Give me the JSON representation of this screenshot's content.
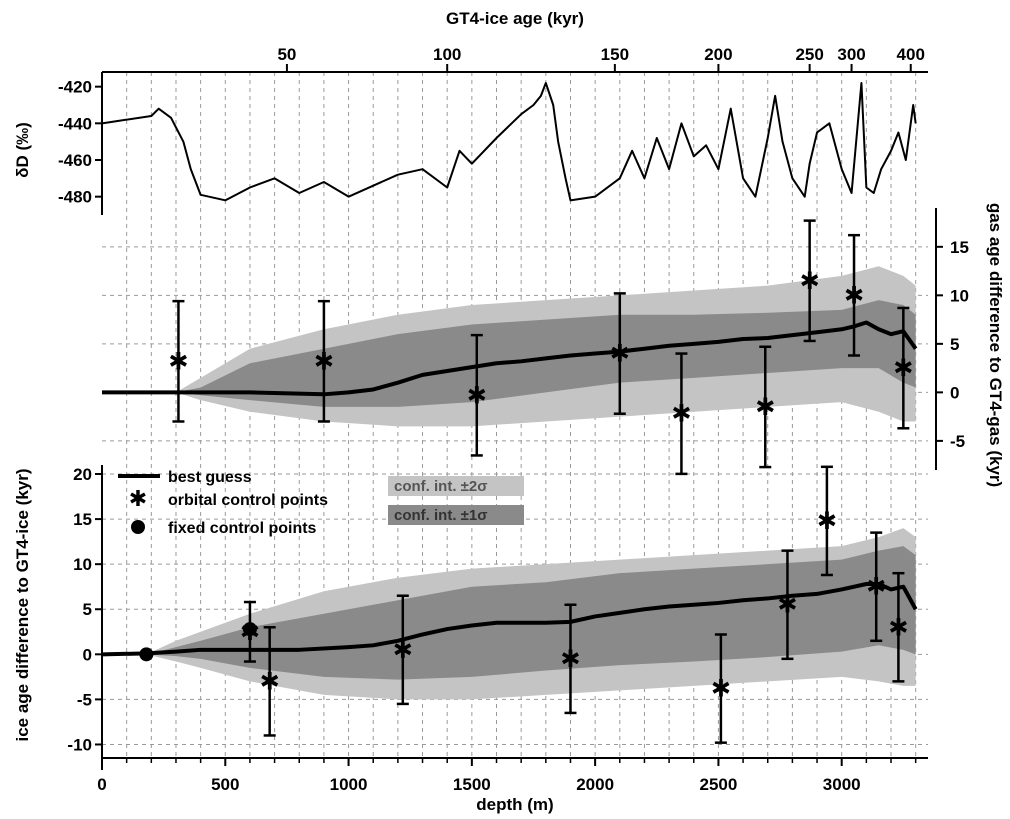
{
  "colors": {
    "curve": "#000000",
    "band_2sigma": "#c4c4c4",
    "band_1sigma": "#8a8a8a",
    "grid": "#9a9a9a",
    "markers": "#000000"
  },
  "axes": {
    "top_title": "GT4-ice age (kyr)",
    "bottom_title": "depth (m)",
    "left_top_title": "δD (‰)",
    "left_bottom_title": "ice age difference to GT4-ice (kyr)",
    "right_title": "gas age difference to GT4-gas (kyr)"
  },
  "legend": {
    "best_guess": "best guess",
    "orbital": "orbital control points",
    "fixed": "fixed control points",
    "conf_2sigma": "conf. int. ±2σ",
    "conf_1sigma": "conf. int. ±1σ"
  },
  "chart_data": [
    {
      "type": "line",
      "panel": "top",
      "ylabel": "δD (‰)",
      "xlabel": "depth (m)",
      "top_axis": {
        "label": "GT4-ice age (kyr)",
        "ticks": [
          {
            "label": "50",
            "depth": 750
          },
          {
            "label": "100",
            "depth": 1400
          },
          {
            "label": "150",
            "depth": 2080
          },
          {
            "label": "200",
            "depth": 2500
          },
          {
            "label": "250",
            "depth": 2870
          },
          {
            "label": "300",
            "depth": 3040
          },
          {
            "label": "400",
            "depth": 3280
          }
        ]
      },
      "ylim": [
        -490,
        -412
      ],
      "yticks": [
        -420,
        -440,
        -460,
        -480
      ],
      "series": [
        {
          "x": [
            0,
            100,
            200,
            230,
            280,
            330,
            360,
            400,
            500,
            600,
            700,
            800,
            900,
            1000,
            1100,
            1200,
            1300,
            1400,
            1450,
            1500,
            1600,
            1700,
            1750,
            1780,
            1800,
            1830,
            1850,
            1880,
            1900,
            2000,
            2100,
            2150,
            2200,
            2250,
            2300,
            2350,
            2400,
            2450,
            2500,
            2550,
            2600,
            2650,
            2700,
            2730,
            2760,
            2800,
            2850,
            2870,
            2900,
            2950,
            3000,
            3040,
            3080,
            3100,
            3130,
            3160,
            3200,
            3230,
            3260,
            3290,
            3300
          ],
          "y": [
            -440,
            -438,
            -436,
            -432,
            -437,
            -450,
            -465,
            -479,
            -482,
            -475,
            -470,
            -478,
            -472,
            -480,
            -474,
            -468,
            -465,
            -475,
            -455,
            -462,
            -448,
            -435,
            -430,
            -425,
            -418,
            -430,
            -450,
            -470,
            -482,
            -480,
            -470,
            -455,
            -470,
            -448,
            -465,
            -440,
            -458,
            -452,
            -465,
            -432,
            -470,
            -480,
            -448,
            -425,
            -450,
            -470,
            -480,
            -462,
            -445,
            -440,
            -465,
            -478,
            -418,
            -475,
            -478,
            -465,
            -455,
            -445,
            -460,
            -430,
            -440
          ]
        }
      ]
    },
    {
      "type": "line",
      "panel": "middle",
      "ylabel": "gas age difference to GT4-gas (kyr)",
      "ylim": [
        -8,
        19
      ],
      "yticks": [
        -5,
        0,
        5,
        10,
        15
      ],
      "series": [
        {
          "name": "best guess",
          "x": [
            0,
            300,
            400,
            600,
            900,
            1000,
            1100,
            1200,
            1300,
            1400,
            1500,
            1600,
            1700,
            1800,
            1900,
            2000,
            2100,
            2200,
            2300,
            2400,
            2500,
            2600,
            2700,
            2800,
            2900,
            3000,
            3050,
            3100,
            3150,
            3200,
            3250,
            3300
          ],
          "y": [
            0,
            0,
            0,
            0,
            -0.2,
            0,
            0.3,
            1.0,
            1.8,
            2.2,
            2.6,
            3.0,
            3.2,
            3.5,
            3.8,
            4.0,
            4.2,
            4.5,
            4.8,
            5.0,
            5.2,
            5.5,
            5.6,
            5.9,
            6.2,
            6.5,
            6.8,
            7.2,
            6.5,
            6.0,
            6.3,
            4.5
          ]
        }
      ],
      "band_1sigma": {
        "x": [
          0,
          300,
          400,
          600,
          900,
          1200,
          1500,
          1800,
          2100,
          2400,
          2700,
          3000,
          3150,
          3250,
          3300
        ],
        "low": [
          0,
          0,
          -0.3,
          -0.8,
          -1.5,
          -1.5,
          -1.0,
          0.0,
          1.0,
          1.5,
          2.0,
          2.5,
          2.5,
          1.0,
          0.5
        ],
        "high": [
          0,
          0,
          0.5,
          3.0,
          4.5,
          6.0,
          7.0,
          7.5,
          8.0,
          8.0,
          8.2,
          8.5,
          9.5,
          9.0,
          8.0
        ]
      },
      "band_2sigma": {
        "x": [
          0,
          300,
          400,
          600,
          900,
          1200,
          1500,
          1800,
          2100,
          2400,
          2700,
          3000,
          3150,
          3250,
          3300
        ],
        "low": [
          0,
          0,
          -0.8,
          -2.0,
          -3.0,
          -3.5,
          -3.5,
          -3.0,
          -2.5,
          -2.0,
          -1.5,
          -1.0,
          -2.0,
          -3.0,
          -3.0
        ],
        "high": [
          0,
          0,
          1.5,
          4.5,
          6.5,
          8.0,
          9.0,
          9.5,
          10.0,
          10.5,
          11.0,
          12.0,
          13.0,
          12.0,
          11.0
        ]
      },
      "orbital_points": [
        {
          "x": 310,
          "y": 3.2,
          "err": 6.2
        },
        {
          "x": 900,
          "y": 3.2,
          "err": 6.2
        },
        {
          "x": 1520,
          "y": -0.3,
          "err": 6.2
        },
        {
          "x": 2100,
          "y": 4.0,
          "err": 6.2
        },
        {
          "x": 2350,
          "y": -2.2,
          "err": 6.2
        },
        {
          "x": 2690,
          "y": -1.5,
          "err": 6.2
        },
        {
          "x": 2870,
          "y": 11.5,
          "err": 6.2
        },
        {
          "x": 3050,
          "y": 10.0,
          "err": 6.2
        },
        {
          "x": 3250,
          "y": 2.5,
          "err": 6.2
        }
      ]
    },
    {
      "type": "line",
      "panel": "bottom",
      "ylabel": "ice age difference to GT4-ice (kyr)",
      "xlabel": "depth (m)",
      "xlim": [
        0,
        3350
      ],
      "xticks": [
        0,
        500,
        1000,
        1500,
        2000,
        2500,
        3000
      ],
      "ylim": [
        -11.5,
        21
      ],
      "yticks": [
        -10,
        -5,
        0,
        5,
        10,
        15,
        20
      ],
      "series": [
        {
          "name": "best guess",
          "x": [
            0,
            180,
            300,
            400,
            600,
            800,
            1000,
            1100,
            1200,
            1300,
            1400,
            1500,
            1600,
            1700,
            1800,
            1900,
            2000,
            2100,
            2200,
            2300,
            2400,
            2500,
            2600,
            2700,
            2800,
            2900,
            3000,
            3100,
            3150,
            3200,
            3250,
            3300
          ],
          "y": [
            0,
            0.1,
            0.3,
            0.5,
            0.5,
            0.5,
            0.8,
            1.0,
            1.5,
            2.2,
            2.8,
            3.2,
            3.5,
            3.5,
            3.5,
            3.6,
            4.2,
            4.6,
            5.0,
            5.3,
            5.5,
            5.7,
            6.0,
            6.2,
            6.5,
            6.7,
            7.2,
            7.8,
            7.8,
            7.2,
            7.5,
            5.0
          ]
        }
      ],
      "band_1sigma": {
        "x": [
          0,
          180,
          300,
          400,
          600,
          900,
          1200,
          1500,
          1800,
          2100,
          2400,
          2700,
          3000,
          3150,
          3250,
          3300
        ],
        "low": [
          0,
          0,
          -0.2,
          -0.5,
          -1.5,
          -2.5,
          -2.8,
          -2.5,
          -1.8,
          -1.2,
          -0.8,
          -0.3,
          0.3,
          1.0,
          0.5,
          0.0
        ],
        "high": [
          0,
          0,
          0.8,
          1.5,
          3.0,
          4.5,
          6.0,
          7.5,
          8.0,
          9.0,
          9.5,
          10.0,
          10.5,
          11.5,
          12.0,
          11.0
        ]
      },
      "band_2sigma": {
        "x": [
          0,
          180,
          300,
          400,
          600,
          900,
          1200,
          1500,
          1800,
          2100,
          2400,
          2700,
          3000,
          3150,
          3250,
          3300
        ],
        "low": [
          0,
          0,
          -0.8,
          -1.5,
          -3.0,
          -4.5,
          -5.0,
          -5.0,
          -4.5,
          -4.0,
          -3.5,
          -3.0,
          -2.5,
          -3.0,
          -3.5,
          -3.5
        ],
        "high": [
          0,
          0,
          1.5,
          2.5,
          4.5,
          7.0,
          8.5,
          9.5,
          10.0,
          10.5,
          11.0,
          11.5,
          12.0,
          13.0,
          14.0,
          13.0
        ]
      },
      "orbital_points": [
        {
          "x": 600,
          "y": 2.5,
          "err": 3.3
        },
        {
          "x": 680,
          "y": -3.0,
          "err": 6.0
        },
        {
          "x": 1220,
          "y": 0.5,
          "err": 6.0
        },
        {
          "x": 1900,
          "y": -0.5,
          "err": 6.0
        },
        {
          "x": 2510,
          "y": -3.8,
          "err": 6.0
        },
        {
          "x": 2780,
          "y": 5.5,
          "err": 6.0
        },
        {
          "x": 2940,
          "y": 14.8,
          "err": 6.0
        },
        {
          "x": 3140,
          "y": 7.5,
          "err": 6.0
        },
        {
          "x": 3230,
          "y": 3.0,
          "err": 6.0
        }
      ],
      "fixed_points": [
        {
          "x": 180,
          "y": 0
        },
        {
          "x": 600,
          "y": 2.8
        }
      ]
    }
  ]
}
